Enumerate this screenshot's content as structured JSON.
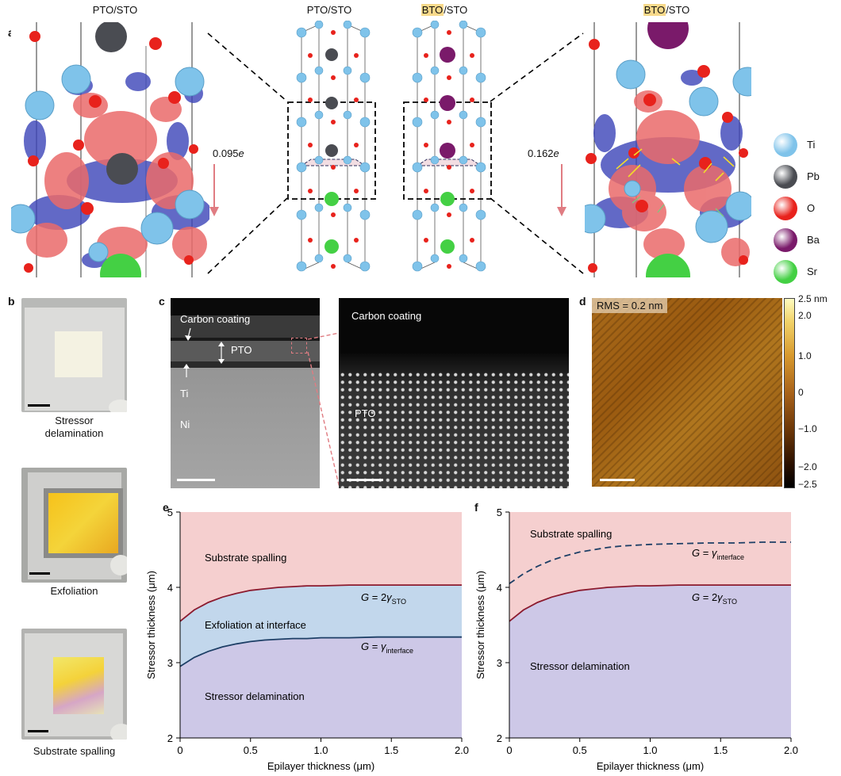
{
  "panel_a": {
    "letter": "a",
    "titles": [
      "PTO/STO",
      "PTO/STO",
      "BTO",
      "/STO",
      "BTO",
      "/STO"
    ],
    "charge_left": "0.095",
    "charge_right": "0.162",
    "charge_unit": "e",
    "legend": [
      {
        "label": "Ti",
        "color": "#7fc3ea"
      },
      {
        "label": "Pb",
        "color": "#4a4c52"
      },
      {
        "label": "O",
        "color": "#e8221c"
      },
      {
        "label": "Ba",
        "color": "#7a1a6a"
      },
      {
        "label": "Sr",
        "color": "#44d044"
      }
    ]
  },
  "panel_b": {
    "letter": "b",
    "captions": [
      [
        "Stressor",
        "delamination"
      ],
      [
        "Exfoliation"
      ],
      [
        "Substrate spalling"
      ]
    ]
  },
  "panel_c": {
    "letter": "c",
    "labels": {
      "carbon": "Carbon coating",
      "pto": "PTO",
      "ti": "Ti",
      "ni": "Ni",
      "carbon_zoom": "Carbon coating",
      "pto_zoom": "PTO"
    }
  },
  "panel_d": {
    "letter": "d",
    "rms": "RMS = 0.2 nm",
    "colorbar_ticks": [
      "2.5 nm",
      "2.0",
      "1.0",
      "0",
      "−1.0",
      "−2.0",
      "−2.5"
    ]
  },
  "chart_data": [
    {
      "panel": "e",
      "type": "area",
      "xlabel": "Epilayer thickness (μm)",
      "ylabel": "Stressor thickness (μm)",
      "xlim": [
        0,
        2.0
      ],
      "ylim": [
        2,
        5
      ],
      "xticks": [
        "0",
        "0.5",
        "1.0",
        "1.5",
        "2.0"
      ],
      "yticks": [
        "2",
        "3",
        "4",
        "5"
      ],
      "series": [
        {
          "name_parts": [
            "G",
            " = 2",
            "γ",
            "STO"
          ],
          "style": "solid",
          "color": "#8b1a2e",
          "x": [
            0,
            0.1,
            0.2,
            0.3,
            0.4,
            0.5,
            0.6,
            0.7,
            0.8,
            0.9,
            1.0,
            1.2,
            1.4,
            1.6,
            1.8,
            2.0
          ],
          "y": [
            3.55,
            3.7,
            3.8,
            3.87,
            3.92,
            3.96,
            3.98,
            4.0,
            4.01,
            4.02,
            4.02,
            4.03,
            4.03,
            4.03,
            4.03,
            4.03
          ]
        },
        {
          "name_parts": [
            "G",
            " = ",
            "γ",
            "interface"
          ],
          "style": "solid",
          "color": "#1d3f66",
          "x": [
            0,
            0.1,
            0.2,
            0.3,
            0.4,
            0.5,
            0.6,
            0.7,
            0.8,
            0.9,
            1.0,
            1.2,
            1.4,
            1.6,
            1.8,
            2.0
          ],
          "y": [
            2.95,
            3.07,
            3.15,
            3.21,
            3.25,
            3.28,
            3.3,
            3.31,
            3.32,
            3.32,
            3.33,
            3.33,
            3.34,
            3.34,
            3.34,
            3.34
          ]
        }
      ],
      "regions": [
        {
          "label": "Substrate spalling",
          "color": "#f5cfcf"
        },
        {
          "label": "Exfoliation at interface",
          "color": "#c2d7ec"
        },
        {
          "label": "Stressor delamination",
          "color": "#cdc8e7"
        }
      ]
    },
    {
      "panel": "f",
      "type": "area",
      "xlabel": "Epilayer thickness (μm)",
      "ylabel": "Stressor thickness (μm)",
      "xlim": [
        0,
        2.0
      ],
      "ylim": [
        2,
        5
      ],
      "xticks": [
        "0",
        "0.5",
        "1.0",
        "1.5",
        "2.0"
      ],
      "yticks": [
        "2",
        "3",
        "4",
        "5"
      ],
      "series": [
        {
          "name_parts": [
            "G",
            " = ",
            "γ",
            "interface"
          ],
          "style": "dashed",
          "color": "#1d3f66",
          "x": [
            0,
            0.1,
            0.2,
            0.3,
            0.4,
            0.5,
            0.6,
            0.7,
            0.8,
            0.9,
            1.0,
            1.2,
            1.4,
            1.6,
            1.8,
            2.0
          ],
          "y": [
            4.05,
            4.18,
            4.28,
            4.36,
            4.42,
            4.47,
            4.5,
            4.53,
            4.55,
            4.56,
            4.57,
            4.58,
            4.59,
            4.59,
            4.6,
            4.6
          ]
        },
        {
          "name_parts": [
            "G",
            " = 2",
            "γ",
            "STO"
          ],
          "style": "solid",
          "color": "#8b1a2e",
          "x": [
            0,
            0.1,
            0.2,
            0.3,
            0.4,
            0.5,
            0.6,
            0.7,
            0.8,
            0.9,
            1.0,
            1.2,
            1.4,
            1.6,
            1.8,
            2.0
          ],
          "y": [
            3.55,
            3.7,
            3.8,
            3.87,
            3.92,
            3.96,
            3.98,
            4.0,
            4.01,
            4.02,
            4.02,
            4.03,
            4.03,
            4.03,
            4.03,
            4.03
          ]
        }
      ],
      "regions": [
        {
          "label": "Substrate spalling",
          "color": "#f5cfcf"
        },
        {
          "label": "Stressor delamination",
          "color": "#cdc8e7"
        }
      ]
    }
  ]
}
